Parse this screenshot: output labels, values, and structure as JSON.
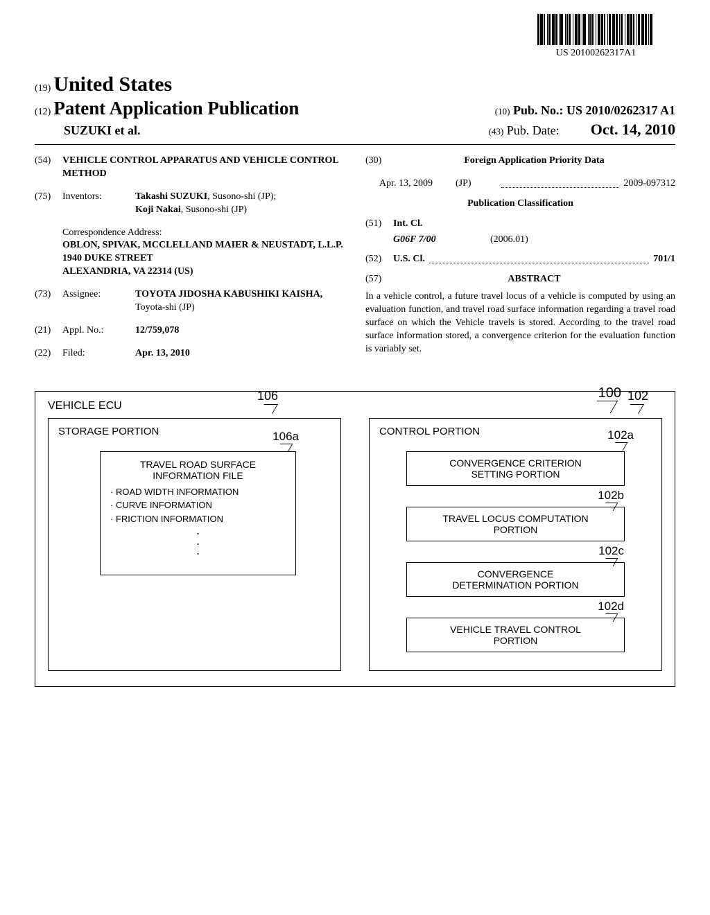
{
  "barcode": {
    "text": "US 20100262317A1",
    "bar_widths": [
      3,
      1,
      4,
      1,
      2,
      3,
      1,
      1,
      3,
      2,
      4,
      1,
      3,
      2,
      1,
      1,
      4,
      3,
      1,
      1,
      2,
      1,
      3,
      3,
      1,
      2,
      4,
      1,
      3,
      2,
      1,
      1,
      4,
      3,
      1,
      1,
      2,
      1,
      3,
      3,
      1,
      2,
      4,
      1,
      3,
      1,
      2,
      3,
      1,
      1,
      3,
      2,
      4,
      1,
      3,
      2,
      1,
      1,
      3,
      3,
      1,
      2,
      4,
      1,
      3,
      1,
      2,
      3,
      1,
      1,
      3,
      2,
      4,
      1,
      3,
      2,
      1,
      1,
      4,
      3
    ]
  },
  "header": {
    "code19": "(19)",
    "country": "United States",
    "code12": "(12)",
    "pub_title": "Patent Application Publication",
    "authors": "SUZUKI et al.",
    "code10": "(10)",
    "pub_no_label": "Pub. No.:",
    "pub_no": "US 2010/0262317 A1",
    "code43": "(43)",
    "pub_date_label": "Pub. Date:",
    "pub_date": "Oct. 14, 2010"
  },
  "left": {
    "f54": {
      "num": "(54)",
      "text": "VEHICLE CONTROL APPARATUS AND VEHICLE CONTROL METHOD"
    },
    "f75": {
      "num": "(75)",
      "label": "Inventors:",
      "line1": "Takashi SUZUKI",
      "line1b": ", Susono-shi (JP);",
      "line2": "Koji Nakai",
      "line2b": ", Susono-shi (JP)"
    },
    "corr": {
      "head": "Correspondence Address:",
      "l1": "OBLON, SPIVAK, MCCLELLAND MAIER & NEUSTADT, L.L.P.",
      "l2": "1940 DUKE STREET",
      "l3": "ALEXANDRIA, VA 22314 (US)"
    },
    "f73": {
      "num": "(73)",
      "label": "Assignee:",
      "l1": "TOYOTA JIDOSHA KABUSHIKI KAISHA,",
      "l2": "Toyota-shi (JP)"
    },
    "f21": {
      "num": "(21)",
      "label": "Appl. No.:",
      "val": "12/759,078"
    },
    "f22": {
      "num": "(22)",
      "label": "Filed:",
      "val": "Apr. 13, 2010"
    }
  },
  "right": {
    "f30": {
      "num": "(30)",
      "title": "Foreign Application Priority Data"
    },
    "priority": {
      "date": "Apr. 13, 2009",
      "country": "(JP)",
      "appnum": "2009-097312"
    },
    "pubclass": "Publication Classification",
    "f51": {
      "num": "(51)",
      "label": "Int. Cl.",
      "code": "G06F 7/00",
      "year": "(2006.01)"
    },
    "f52": {
      "num": "(52)",
      "label": "U.S. Cl.",
      "val": "701/1"
    },
    "f57": {
      "num": "(57)",
      "label": "ABSTRACT"
    },
    "abstract": "In a vehicle control, a future travel locus of a vehicle is computed by using an evaluation function, and travel road surface information regarding a travel road surface on which the Vehicle travels is stored. According to the travel road surface information stored, a convergence criterion for the evaluation function is variably set."
  },
  "diagram": {
    "ref_100": "100",
    "ecu_title": "VEHICLE ECU",
    "ref_106": "106",
    "storage_title": "STORAGE PORTION",
    "ref_106a": "106a",
    "file_title1": "TRAVEL ROAD SURFACE",
    "file_title2": "INFORMATION FILE",
    "b1": "· ROAD WIDTH INFORMATION",
    "b2": "· CURVE INFORMATION",
    "b3": "· FRICTION INFORMATION",
    "ref_102": "102",
    "control_title": "CONTROL PORTION",
    "ref_102a": "102a",
    "box_a1": "CONVERGENCE CRITERION",
    "box_a2": "SETTING PORTION",
    "ref_102b": "102b",
    "box_b1": "TRAVEL LOCUS COMPUTATION",
    "box_b2": "PORTION",
    "ref_102c": "102c",
    "box_c1": "CONVERGENCE",
    "box_c2": "DETERMINATION PORTION",
    "ref_102d": "102d",
    "box_d1": "VEHICLE TRAVEL CONTROL",
    "box_d2": "PORTION"
  },
  "colors": {
    "text": "#000000",
    "bg": "#ffffff",
    "line": "#000000"
  }
}
